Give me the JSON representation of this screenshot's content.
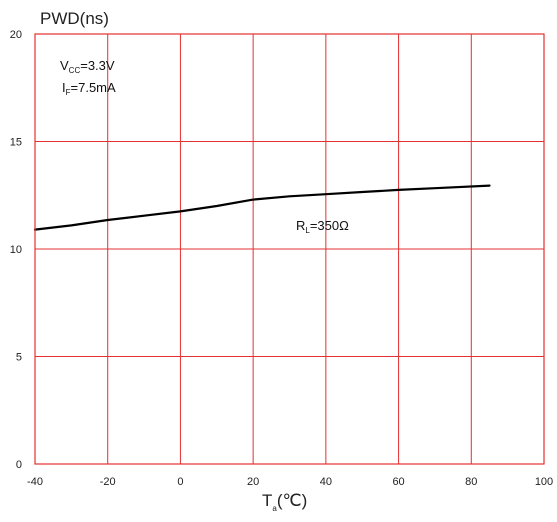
{
  "chart_data": {
    "type": "line",
    "title": "",
    "ylabel": "PWD(ns)",
    "xlabel": {
      "main": "T",
      "sub": "a",
      "unit": "(℃)"
    },
    "xlim": [
      -40,
      100
    ],
    "ylim": [
      0,
      20
    ],
    "x_ticks": [
      -40,
      -20,
      0,
      20,
      40,
      60,
      80,
      100
    ],
    "y_ticks": [
      0,
      5,
      10,
      15,
      20
    ],
    "grid": true,
    "colors": {
      "grid": "#e53030",
      "line": "#000000",
      "frame": "#e53030"
    },
    "series": [
      {
        "label": {
          "main": "R",
          "sub": "L",
          "rest": "=350Ω"
        },
        "x": [
          -40,
          -30,
          -20,
          -10,
          0,
          10,
          20,
          30,
          40,
          50,
          60,
          70,
          85
        ],
        "y": [
          10.9,
          11.1,
          11.35,
          11.55,
          11.75,
          12.0,
          12.3,
          12.45,
          12.55,
          12.65,
          12.75,
          12.83,
          12.95
        ]
      }
    ],
    "conditions": [
      {
        "main": "V",
        "sub": "CC",
        "rest": "=3.3V"
      },
      {
        "main": "I",
        "sub": "F",
        "rest": "=7.5mA"
      }
    ]
  }
}
